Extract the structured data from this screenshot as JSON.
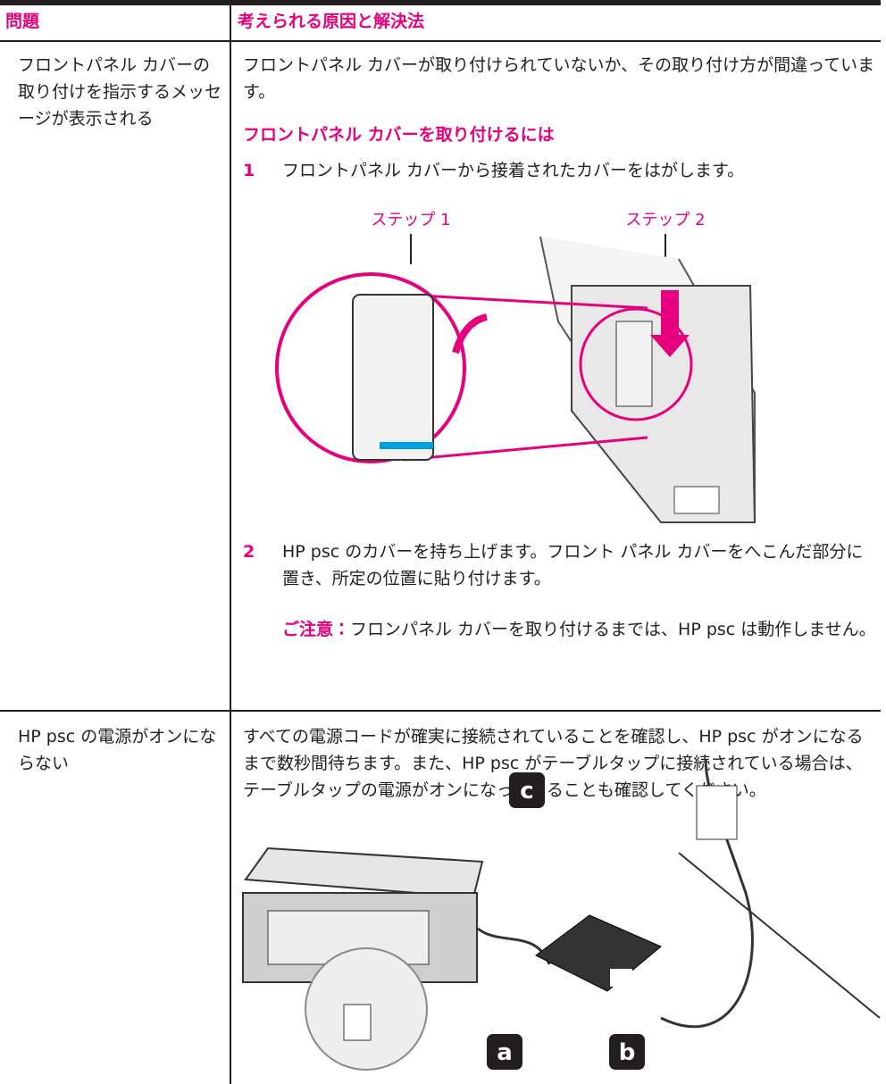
{
  "table": {
    "headers": [
      "問題",
      "考えられる原因と解決法"
    ],
    "rows": [
      {
        "problem": "フロントパネル カバーの取り付けを指示するメッセージが表示される",
        "cause": "フロントパネル カバーが取り付けられていないか、その取り付け方が間違っています。",
        "procedure_title": "フロントパネル カバーを取り付けるには",
        "steps": [
          {
            "number": 1,
            "text": "フロントパネル カバーから接着されたカバーをはがします。"
          },
          {
            "number": 2,
            "text": "HP psc のカバーを持ち上げます。フロント パネル カバーをへこんだ部分に置き、所定の位置に貼り付けます。"
          }
        ],
        "figure_labels": [
          "ステップ 1",
          "ステップ 2"
        ],
        "note_label": "ご注意：",
        "note_text": "フロンパネル カバーを取り付けるまでは、HP psc は動作しません。"
      },
      {
        "problem": "HP psc の電源がオンにならない",
        "cause": "すべての電源コードが確実に接続されていることを確認し、HP psc がオンになるまで数秒間待ちます。また、HP psc がテーブルタップに接続されている場合は、テーブルタップの電源がオンになっていることも確認してください。",
        "figure_labels": [
          "a",
          "b",
          "c"
        ]
      }
    ]
  }
}
